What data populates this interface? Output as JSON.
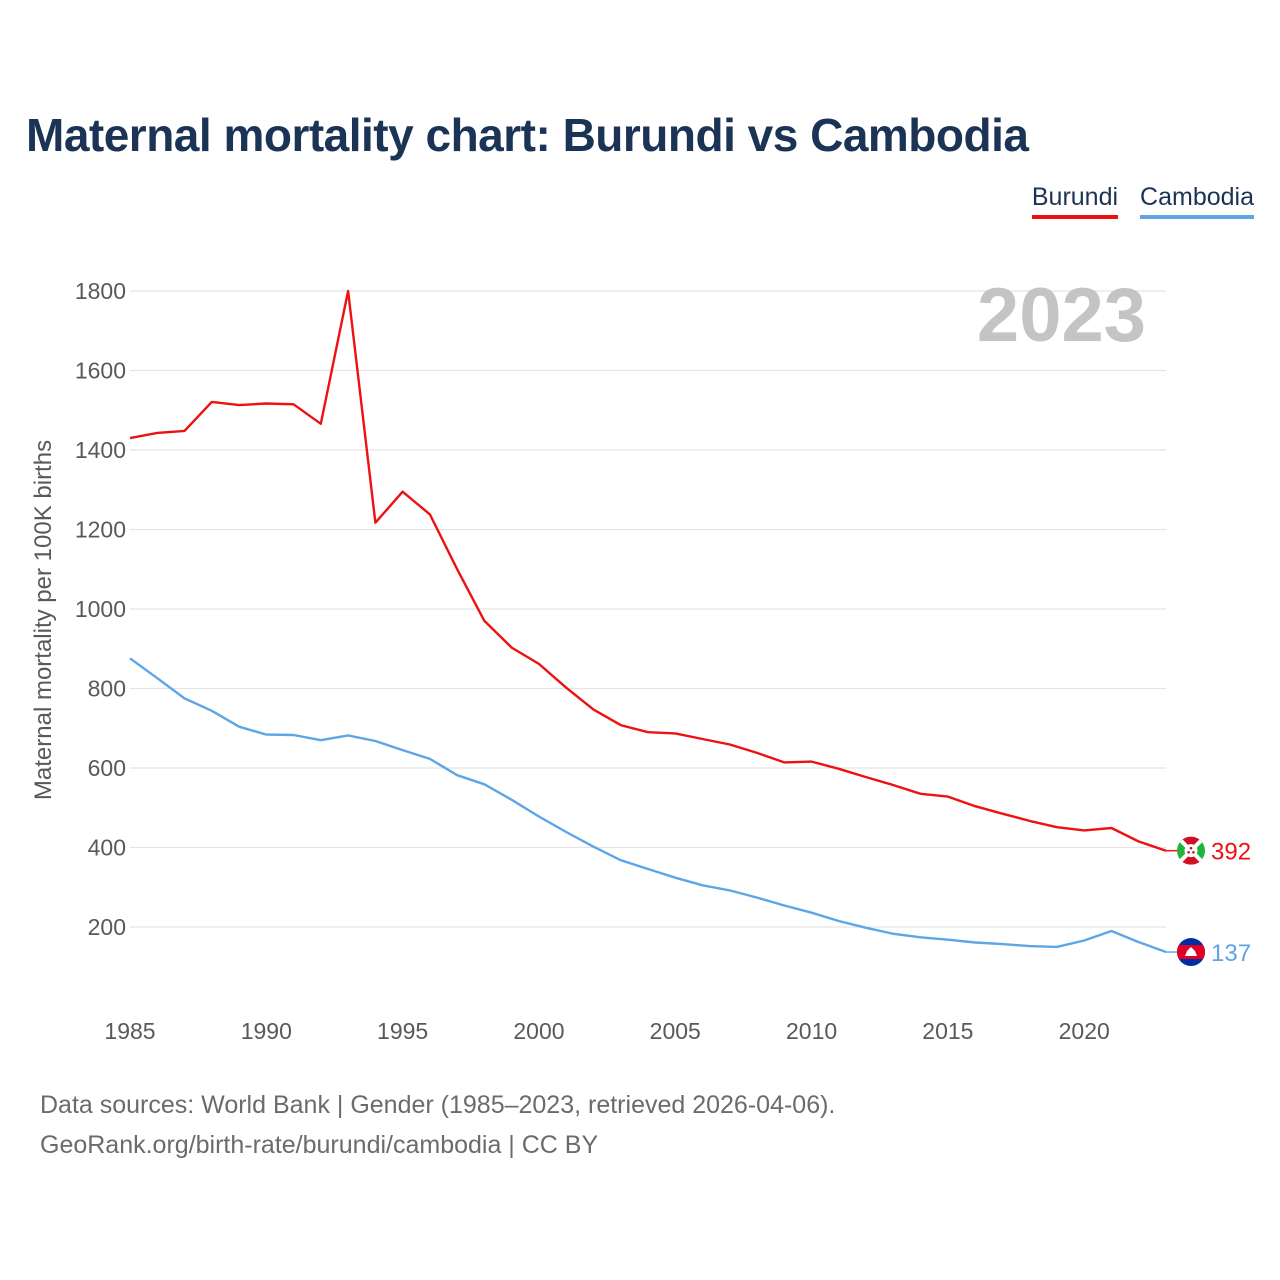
{
  "title": "Maternal mortality chart: Burundi vs Cambodia",
  "legend": [
    {
      "label": "Burundi",
      "color": "#ee1111"
    },
    {
      "label": "Cambodia",
      "color": "#5ea5e6"
    }
  ],
  "year_watermark": "2023",
  "source": {
    "line1": "Data sources: World Bank | Gender (1985–2023, retrieved 2026-04-06).",
    "line2": "GeoRank.org/birth-rate/burundi/cambodia | CC BY"
  },
  "chart_data": {
    "type": "line",
    "title": "Maternal mortality chart: Burundi vs Cambodia",
    "xlabel": "",
    "ylabel": "Maternal mortality per 100K births",
    "xlim": [
      1985,
      2023
    ],
    "ylim": [
      0,
      1800
    ],
    "yticks": [
      200,
      400,
      600,
      800,
      1000,
      1200,
      1400,
      1600,
      1800
    ],
    "xticks": [
      1985,
      1990,
      1995,
      2000,
      2005,
      2010,
      2015,
      2020
    ],
    "grid": true,
    "x": [
      1985,
      1986,
      1987,
      1988,
      1989,
      1990,
      1991,
      1992,
      1993,
      1994,
      1995,
      1996,
      1997,
      1998,
      1999,
      2000,
      2001,
      2002,
      2003,
      2004,
      2005,
      2006,
      2007,
      2008,
      2009,
      2010,
      2011,
      2012,
      2013,
      2014,
      2015,
      2016,
      2017,
      2018,
      2019,
      2020,
      2021,
      2022,
      2023
    ],
    "series": [
      {
        "name": "Burundi",
        "color": "#ee1111",
        "end_label": "392",
        "flag": "burundi",
        "values": [
          1430,
          1443,
          1448,
          1521,
          1513,
          1517,
          1515,
          1466,
          1800,
          1217,
          1295,
          1238,
          1100,
          970,
          903,
          862,
          802,
          747,
          708,
          690,
          687,
          673,
          659,
          638,
          614,
          616,
          598,
          577,
          557,
          535,
          528,
          504,
          485,
          467,
          451,
          443,
          449,
          415,
          392
        ]
      },
      {
        "name": "Cambodia",
        "color": "#5ea5e6",
        "end_label": "137",
        "flag": "cambodia",
        "values": [
          876,
          826,
          775,
          744,
          704,
          684,
          683,
          670,
          682,
          668,
          645,
          623,
          582,
          559,
          520,
          478,
          439,
          402,
          368,
          346,
          324,
          305,
          292,
          274,
          254,
          236,
          215,
          198,
          183,
          174,
          168,
          161,
          157,
          152,
          150,
          166,
          190,
          162,
          137
        ]
      }
    ]
  }
}
